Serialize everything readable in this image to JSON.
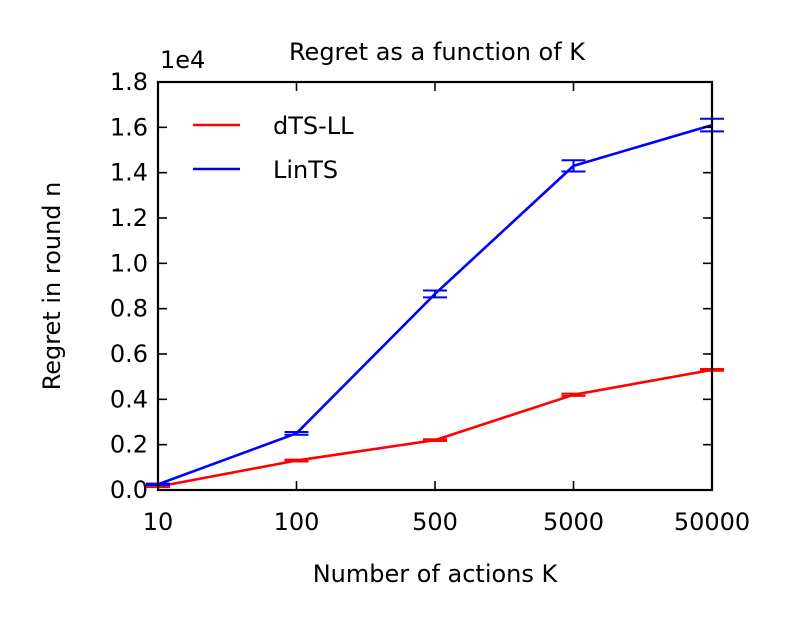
{
  "chart_data": {
    "type": "line",
    "title": "Regret as a function of K",
    "xlabel": "Number of actions K",
    "ylabel": "Regret in round n",
    "y_offset_text": "1e4",
    "x_scale": "categorical",
    "categories": [
      "10",
      "100",
      "500",
      "5000",
      "50000"
    ],
    "ylim": [
      0,
      18000
    ],
    "yticks": [
      0,
      2000,
      4000,
      6000,
      8000,
      10000,
      12000,
      14000,
      16000,
      18000
    ],
    "ytick_labels": [
      "0.0",
      "0.2",
      "0.4",
      "0.6",
      "0.8",
      "1.0",
      "1.2",
      "1.4",
      "1.6",
      "1.8"
    ],
    "grid": false,
    "legend_position": "top-left",
    "series": [
      {
        "name": "dTS-LL",
        "color": "#ff0000",
        "values": [
          150,
          1300,
          2200,
          4200,
          5300
        ],
        "errors": [
          20,
          40,
          40,
          50,
          40
        ]
      },
      {
        "name": "LinTS",
        "color": "#0000ff",
        "values": [
          250,
          2500,
          8650,
          14300,
          16100
        ],
        "errors": [
          30,
          60,
          150,
          250,
          280
        ]
      }
    ]
  }
}
